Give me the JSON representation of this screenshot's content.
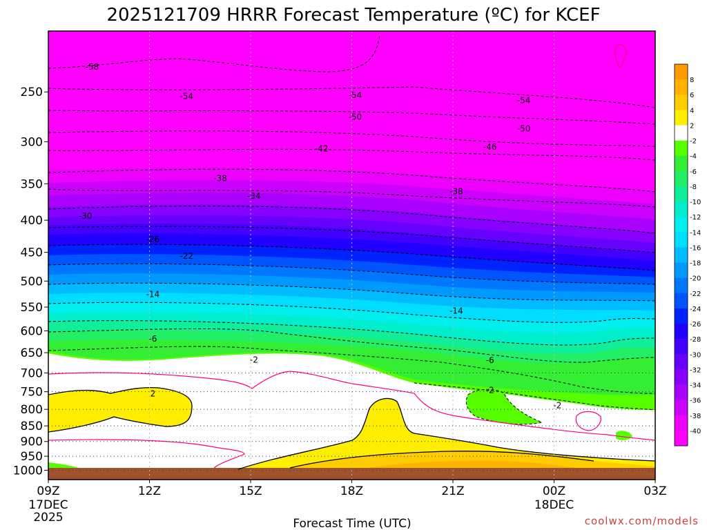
{
  "chart_data": {
    "type": "heatmap",
    "title": "2025121709 HRRR Forecast Temperature (ºC) for KCEF",
    "xlabel": "Forecast Time (UTC)",
    "ylabel": "",
    "credit": "coolwx.com/models",
    "y_axis": {
      "scale": "log",
      "reversed": true,
      "range_hpa": [
        1035,
        200
      ],
      "ticks": [
        250,
        300,
        350,
        400,
        450,
        500,
        550,
        600,
        650,
        700,
        750,
        800,
        850,
        900,
        950,
        1000
      ]
    },
    "x_axis": {
      "range_hours": [
        0,
        18
      ],
      "ticks": [
        {
          "label": "09Z",
          "sub1": "17DEC",
          "sub2": "2025",
          "hour": 0
        },
        {
          "label": "12Z",
          "sub1": "",
          "sub2": "",
          "hour": 3
        },
        {
          "label": "15Z",
          "sub1": "",
          "sub2": "",
          "hour": 6
        },
        {
          "label": "18Z",
          "sub1": "",
          "sub2": "",
          "hour": 9
        },
        {
          "label": "21Z",
          "sub1": "",
          "sub2": "",
          "hour": 12
        },
        {
          "label": "00Z",
          "sub1": "18DEC",
          "sub2": "",
          "hour": 15
        },
        {
          "label": "03Z",
          "sub1": "",
          "sub2": "",
          "hour": 18
        }
      ]
    },
    "grid": true,
    "legend": {
      "placement": "right",
      "labels": [
        "8",
        "6",
        "4",
        "2",
        "-2",
        "-4",
        "-6",
        "-8",
        "-10",
        "-12",
        "-14",
        "-16",
        "-18",
        "-20",
        "-22",
        "-24",
        "-26",
        "-28",
        "-30",
        "-32",
        "-34",
        "-36",
        "-38",
        "-40"
      ],
      "colors": [
        "#ff9900",
        "#ffb300",
        "#ffcc00",
        "#ffee00",
        "#ffffff",
        "#55ff00",
        "#33ee33",
        "#22ee66",
        "#11ee99",
        "#00eecc",
        "#00eeee",
        "#00ddff",
        "#00bbff",
        "#0099ff",
        "#0077ff",
        "#0055ff",
        "#0022ff",
        "#2200ff",
        "#4400ff",
        "#6600ff",
        "#8800ff",
        "#aa00ff",
        "#cc00ff",
        "#ee00ff",
        "#ff00ff"
      ]
    },
    "ground_color": "#a0522d",
    "contour_labels": [
      {
        "text": "-58",
        "hour": 1.3,
        "p": 228
      },
      {
        "text": "-54",
        "hour": 4.1,
        "p": 254
      },
      {
        "text": "-54",
        "hour": 9.1,
        "p": 253
      },
      {
        "text": "-54",
        "hour": 14.1,
        "p": 258
      },
      {
        "text": "-50",
        "hour": 9.1,
        "p": 274
      },
      {
        "text": "-50",
        "hour": 14.1,
        "p": 286
      },
      {
        "text": "-46",
        "hour": 13.1,
        "p": 306
      },
      {
        "text": "-42",
        "hour": 8.1,
        "p": 308
      },
      {
        "text": "-38",
        "hour": 5.1,
        "p": 343
      },
      {
        "text": "-38",
        "hour": 12.1,
        "p": 360
      },
      {
        "text": "-34",
        "hour": 6.1,
        "p": 366
      },
      {
        "text": "-30",
        "hour": 1.1,
        "p": 394
      },
      {
        "text": "-26",
        "hour": 3.1,
        "p": 429
      },
      {
        "text": "-22",
        "hour": 4.1,
        "p": 456
      },
      {
        "text": "-14",
        "hour": 3.1,
        "p": 525
      },
      {
        "text": "-14",
        "hour": 12.1,
        "p": 558
      },
      {
        "text": "-6",
        "hour": 3.1,
        "p": 618
      },
      {
        "text": "-6",
        "hour": 13.1,
        "p": 668
      },
      {
        "text": "-2",
        "hour": 6.1,
        "p": 667
      },
      {
        "text": "-2",
        "hour": 13.1,
        "p": 746
      },
      {
        "text": "-2",
        "hour": 15.1,
        "p": 789
      },
      {
        "text": "2",
        "hour": 3.1,
        "p": 755
      }
    ]
  }
}
